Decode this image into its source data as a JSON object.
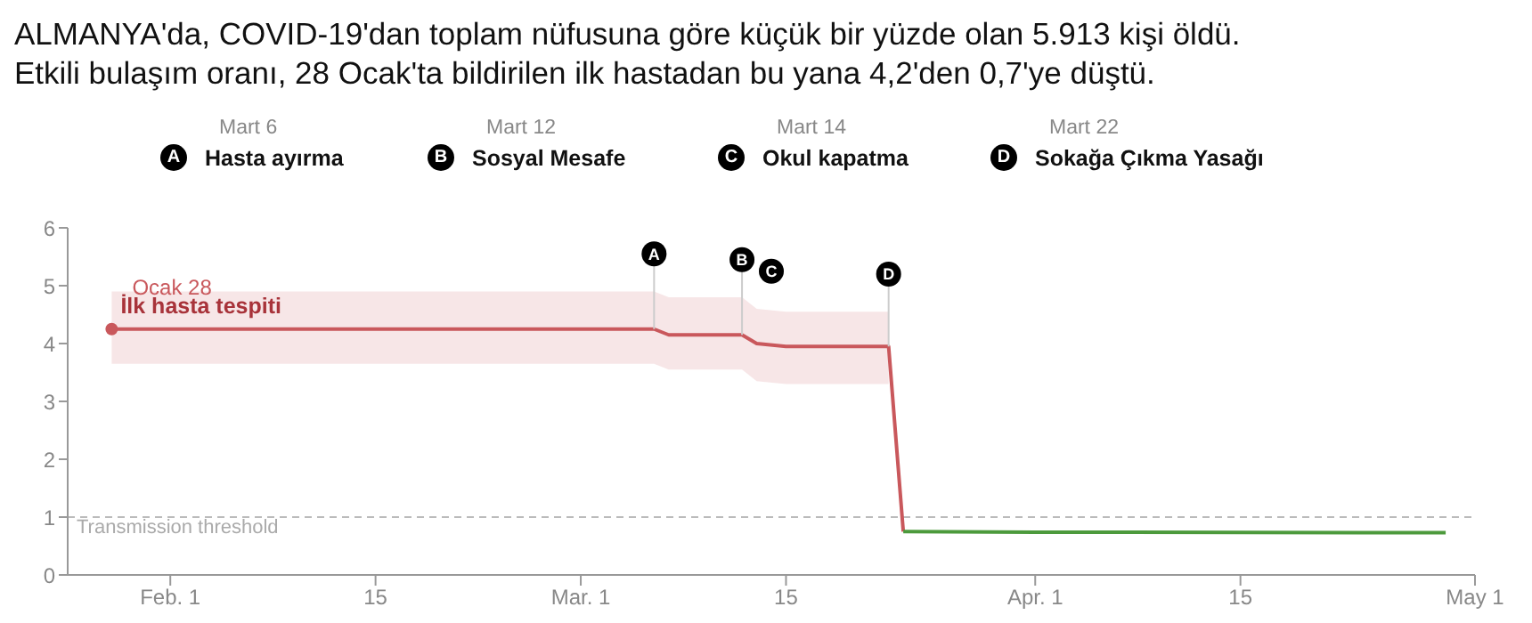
{
  "chart_data": {
    "type": "line",
    "title": "ALMANYA'da, COVID-19'dan toplam nüfusuna göre küçük bir yüzde olan 5.913 kişi öldü.",
    "subtitle": "Etkili bulaşım oranı, 28 Ocak'ta bildirilen ilk hastadan bu yana 4,2'den 0,7'ye düştü.",
    "series": [
      {
        "color": "#c9585c",
        "x": [
          "--01-28",
          "--03-06",
          "--03-07",
          "--03-12",
          "--03-13",
          "--03-15",
          "--03-22",
          "--03-23"
        ],
        "values": [
          4.25,
          4.25,
          4.15,
          4.15,
          4.0,
          3.95,
          3.95,
          0.75
        ],
        "lower": [
          3.65,
          3.65,
          3.55,
          3.55,
          3.35,
          3.3,
          3.3,
          null
        ],
        "upper": [
          4.9,
          4.9,
          4.8,
          4.8,
          4.6,
          4.55,
          4.55,
          null
        ]
      },
      {
        "color": "#4c9a3c",
        "x": [
          "--03-23",
          "--04-01",
          "--04-29"
        ],
        "values": [
          0.75,
          0.74,
          0.73
        ]
      }
    ],
    "annotations": [
      {
        "text": "A",
        "x": "--03-06",
        "y": 5.55
      },
      {
        "text": "B",
        "x": "--03-12",
        "y": 5.45
      },
      {
        "text": "C",
        "x": "--03-14",
        "y": 5.25
      },
      {
        "text": "D",
        "x": "--03-22",
        "y": 5.2
      },
      "Mart  6",
      "Hasta ayırma",
      "Mart  12",
      "Sosyal Mesafe",
      "Mart  14",
      "Okul kapatma",
      "Mart  22",
      "Sokağa Çıkma Yasağı",
      {
        "text": "Ocak 28",
        "x": "--01-28",
        "y": 4.25
      },
      {
        "text": "İlk hasta tespiti",
        "x": "--01-28",
        "y": 4.25
      }
    ],
    "ref_lines": [
      {
        "axis": "y",
        "value": 1,
        "label": "Transmission threshold",
        "color": "#bbbbbb",
        "line_style": "dashed"
      }
    ],
    "xlim": [
      "--01-25",
      "--05-01"
    ],
    "xticks": [
      {
        "value": "--02-01",
        "label": "Feb. 1"
      },
      {
        "value": "--02-15",
        "label": "15"
      },
      {
        "value": "--03-01",
        "label": "Mar. 1"
      },
      {
        "value": "--03-15",
        "label": "15"
      },
      {
        "value": "--04-01",
        "label": "Apr. 1"
      },
      {
        "value": "--04-15",
        "label": "15"
      },
      {
        "value": "--05-01",
        "label": "May 1"
      }
    ],
    "ylim": [
      0,
      6
    ],
    "yticks": [
      0,
      1,
      2,
      3,
      4,
      5,
      6
    ],
    "grid": false,
    "legend": false,
    "marker": "none",
    "line_style": "solid"
  }
}
